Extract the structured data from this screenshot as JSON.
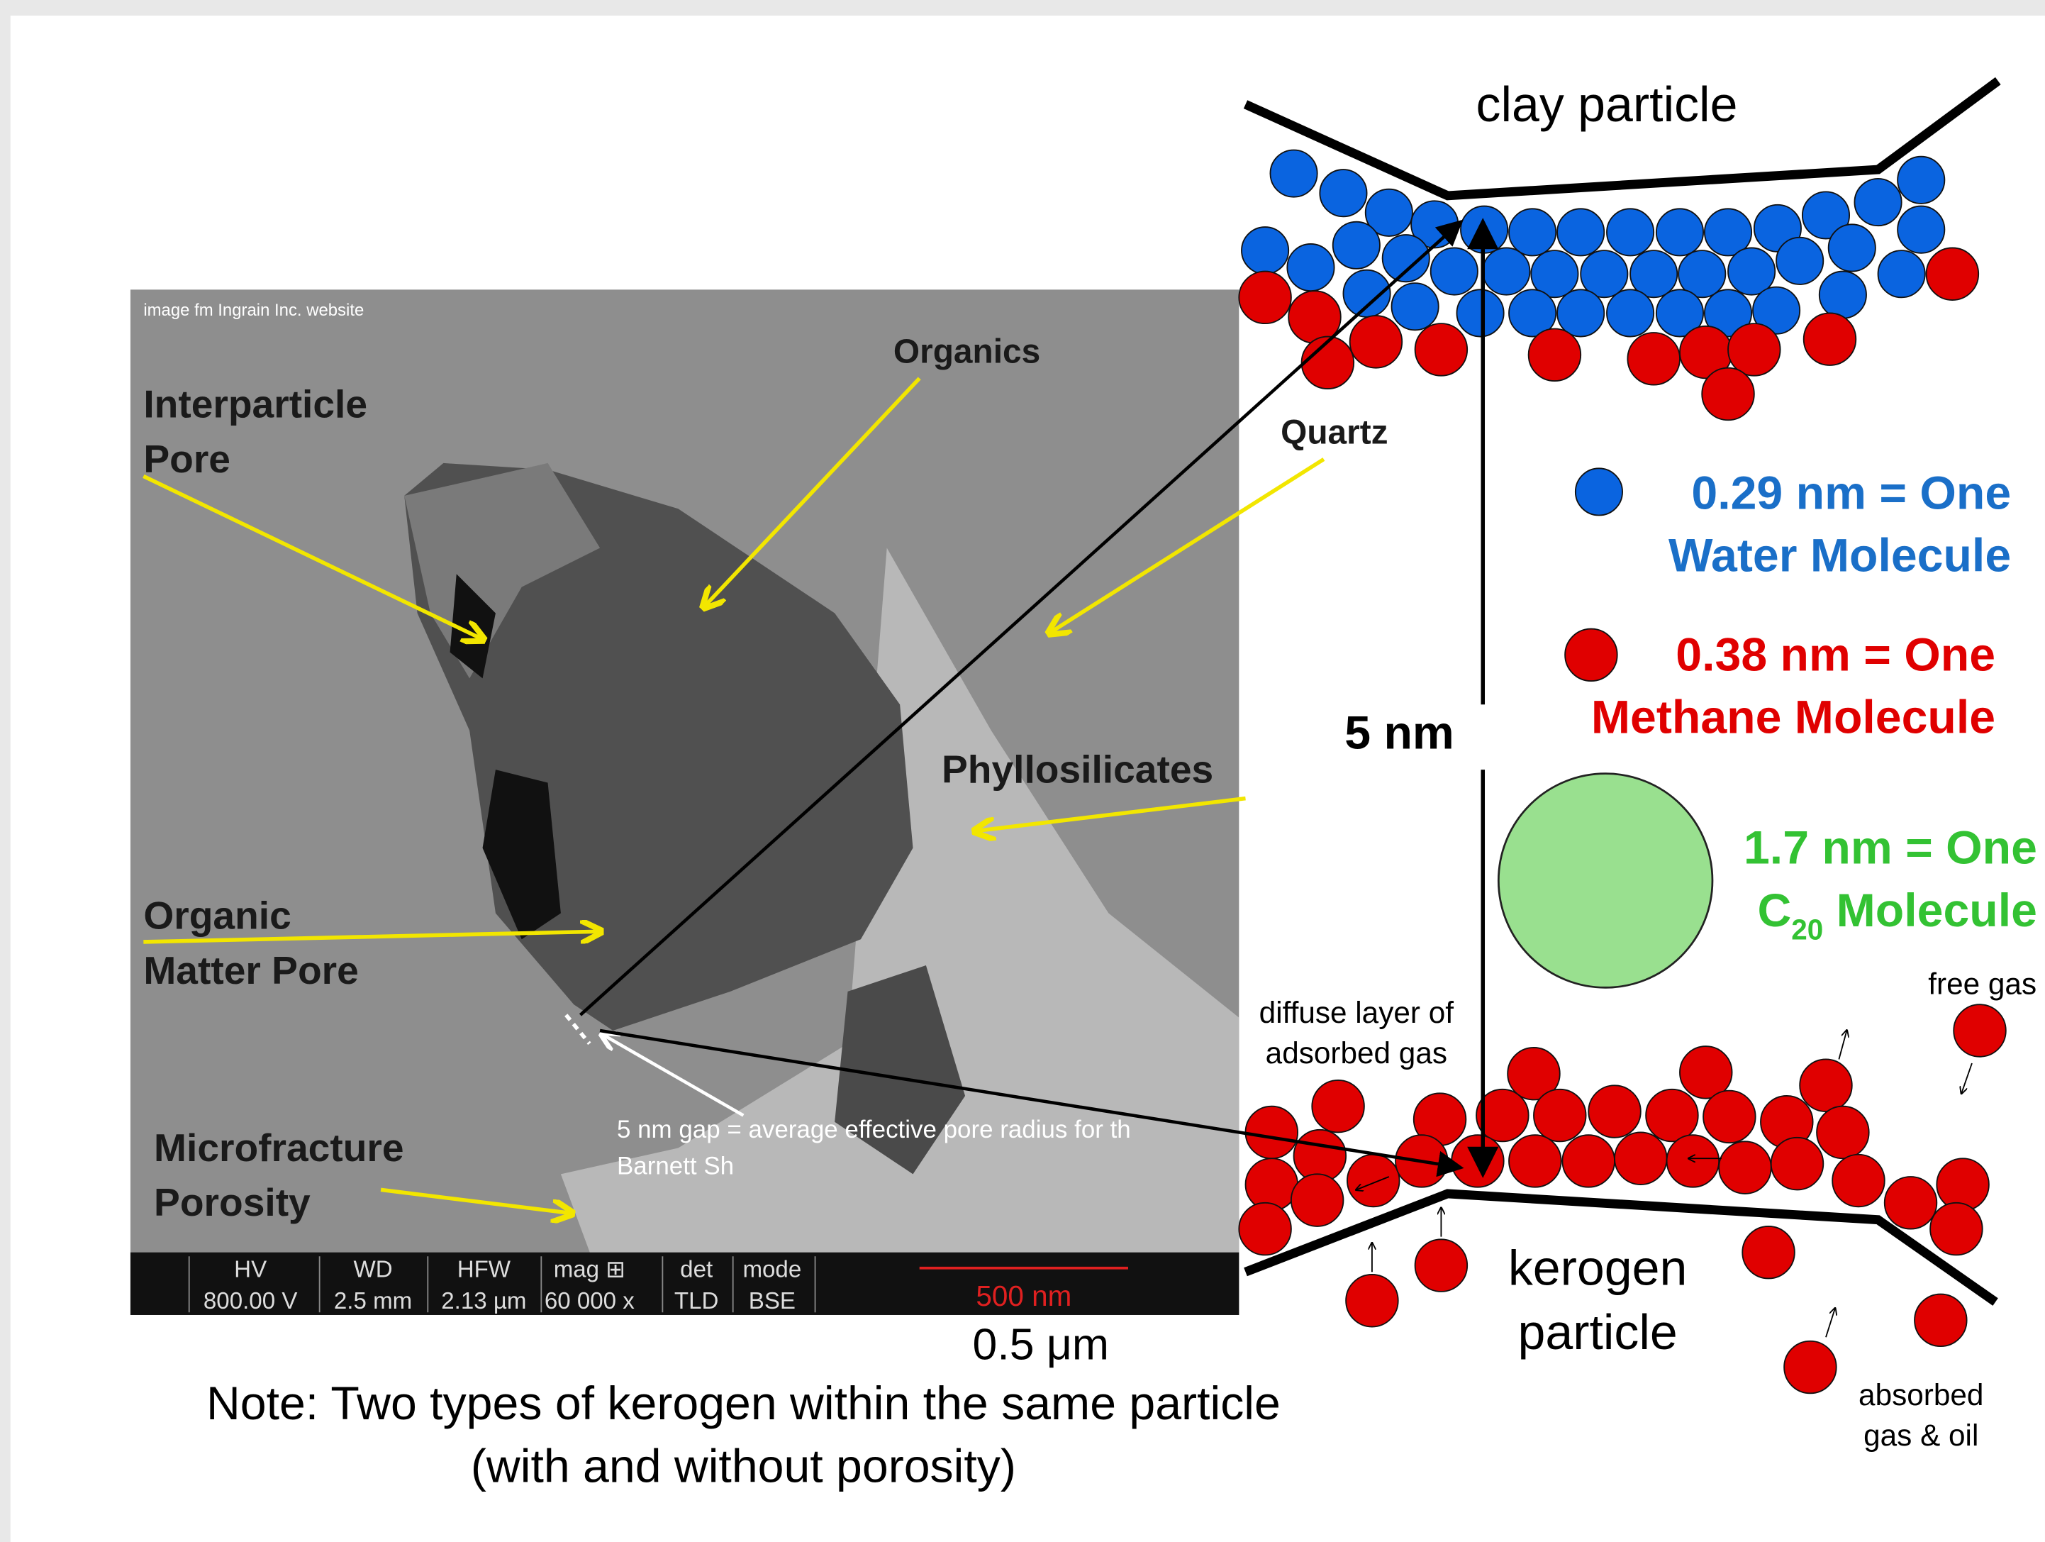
{
  "sem_image": {
    "source": "image fm Ingrain Inc. website",
    "labels": {
      "interparticle_pore": [
        "Interparticle",
        "Pore"
      ],
      "organics": "Organics",
      "quartz": "Quartz",
      "phyllosilicates": "Phyllosilicates",
      "organic_matter_pore": [
        "Organic",
        "Matter Pore"
      ],
      "microfracture_porosity": [
        "Microfracture",
        "Porosity"
      ],
      "gap_note": [
        "5 nm gap = average effective pore radius for th",
        "Barnett Sh"
      ]
    },
    "info_bar": {
      "headers": [
        "HV",
        "WD",
        "HFW",
        "mag ⊞",
        "det",
        "mode"
      ],
      "values": [
        "800.00 V",
        "2.5 mm",
        "2.13 µm",
        "60 000 x",
        "TLD",
        "BSE"
      ],
      "scale_bar": "500 nm"
    }
  },
  "scale": "0.5 μm",
  "note": [
    "Note: Two types of kerogen within the same particle",
    "(with and without porosity)"
  ],
  "diagram": {
    "top_label": "clay particle",
    "gap_label": "5 nm",
    "water": [
      "0.29 nm = One",
      "Water Molecule"
    ],
    "methane": [
      "0.38 nm = One",
      "Methane Molecule"
    ],
    "c20": {
      "line1": "1.7 nm = One",
      "line2_base": "C",
      "line2_sub": "20",
      "line2_rest": " Molecule"
    },
    "diffuse_layer": [
      "diffuse layer of",
      "adsorbed gas"
    ],
    "free_gas": "free gas",
    "bottom_label": [
      "kerogen",
      "particle"
    ],
    "absorbed": [
      "absorbed",
      "gas & oil"
    ]
  }
}
